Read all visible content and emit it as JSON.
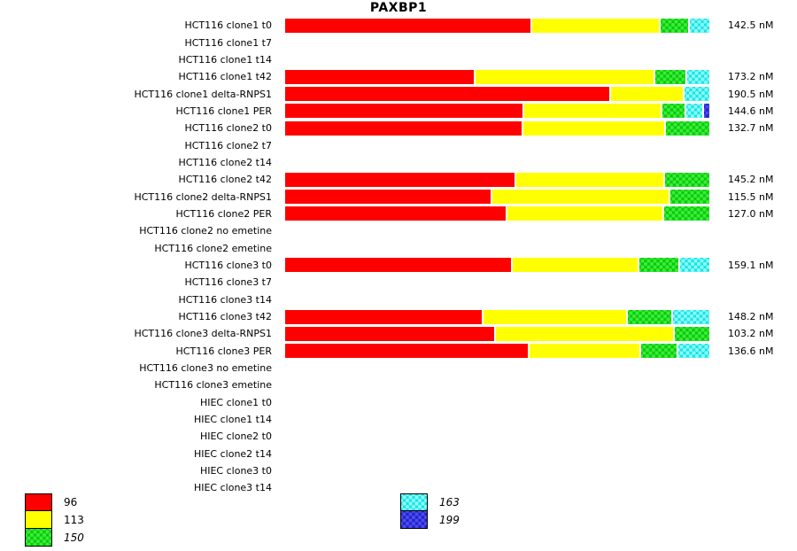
{
  "title": "PAXBP1",
  "chart_data": {
    "type": "bar",
    "orientation": "horizontal-stacked",
    "title": "PAXBP1",
    "xlabel": "",
    "ylabel": "",
    "grid": false,
    "legend_position": "bottom-left",
    "x_range_percent": [
      0,
      100
    ],
    "series_names": [
      "96",
      "113",
      "150",
      "163",
      "199"
    ],
    "series_colors": {
      "96": "#ff0000",
      "113": "#ffff00",
      "150": "#00cc00",
      "163": "#20dede",
      "199": "#2020d0"
    },
    "patterned_series": [
      "150",
      "163",
      "199"
    ],
    "categories": [
      "HCT116 clone1 t0",
      "HCT116 clone1 t7",
      "HCT116 clone1 t14",
      "HCT116 clone1 t42",
      "HCT116 clone1 delta-RNPS1",
      "HCT116 clone1 PER",
      "HCT116 clone2 t0",
      "HCT116 clone2 t7",
      "HCT116 clone2 t14",
      "HCT116 clone2 t42",
      "HCT116 clone2 delta-RNPS1",
      "HCT116 clone2 PER",
      "HCT116 clone2 no emetine",
      "HCT116 clone2 emetine",
      "HCT116 clone3 t0",
      "HCT116 clone3 t7",
      "HCT116 clone3 t14",
      "HCT116 clone3 t42",
      "HCT116 clone3 delta-RNPS1",
      "HCT116 clone3 PER",
      "HCT116 clone3 no emetine",
      "HCT116 clone3 emetine",
      "HIEC clone1 t0",
      "HIEC clone1 t14",
      "HIEC clone2 t0",
      "HIEC clone2 t14",
      "HIEC clone3 t0",
      "HIEC clone3 t14"
    ],
    "stacked_percent": [
      [
        58.6,
        30.3,
        6.5,
        4.6,
        0
      ],
      [
        0,
        0,
        0,
        0,
        0
      ],
      [
        0,
        0,
        0,
        0,
        0
      ],
      [
        45.1,
        42.4,
        7.3,
        5.2,
        0
      ],
      [
        77.1,
        17.1,
        0,
        5.8,
        0
      ],
      [
        57.0,
        32.5,
        5.5,
        3.7,
        1.3
      ],
      [
        56.3,
        33.4,
        10.3,
        0,
        0
      ],
      [
        0,
        0,
        0,
        0,
        0
      ],
      [
        0,
        0,
        0,
        0,
        0
      ],
      [
        54.6,
        34.9,
        10.5,
        0,
        0
      ],
      [
        48.8,
        41.9,
        9.3,
        0,
        0
      ],
      [
        52.5,
        36.7,
        10.8,
        0,
        0
      ],
      [
        0,
        0,
        0,
        0,
        0
      ],
      [
        0,
        0,
        0,
        0,
        0
      ],
      [
        54.0,
        29.8,
        9.2,
        7.0,
        0
      ],
      [
        0,
        0,
        0,
        0,
        0
      ],
      [
        0,
        0,
        0,
        0,
        0
      ],
      [
        47.0,
        34.0,
        10.4,
        8.6,
        0
      ],
      [
        49.7,
        42.1,
        8.2,
        0,
        0
      ],
      [
        57.9,
        26.2,
        8.6,
        7.3,
        0
      ],
      [
        0,
        0,
        0,
        0,
        0
      ],
      [
        0,
        0,
        0,
        0,
        0
      ],
      [
        0,
        0,
        0,
        0,
        0
      ],
      [
        0,
        0,
        0,
        0,
        0
      ],
      [
        0,
        0,
        0,
        0,
        0
      ],
      [
        0,
        0,
        0,
        0,
        0
      ],
      [
        0,
        0,
        0,
        0,
        0
      ],
      [
        0,
        0,
        0,
        0,
        0
      ]
    ],
    "totals_nM": [
      142.5,
      null,
      null,
      173.2,
      190.5,
      144.6,
      132.7,
      null,
      null,
      145.2,
      115.5,
      127.0,
      null,
      null,
      159.1,
      null,
      null,
      148.2,
      103.2,
      136.6,
      null,
      null,
      null,
      null,
      null,
      null,
      null,
      null
    ],
    "bar_value_labels": [
      "142.5 nM",
      "",
      "",
      "173.2 nM",
      "190.5 nM",
      "144.6 nM",
      "132.7 nM",
      "",
      "",
      "145.2 nM",
      "115.5 nM",
      "127.0 nM",
      "",
      "",
      "159.1 nM",
      "",
      "",
      "148.2 nM",
      "103.2 nM",
      "136.6 nM",
      "",
      "",
      "",
      "",
      "",
      "",
      "",
      ""
    ]
  },
  "legend": {
    "columns": [
      {
        "items": [
          {
            "label": "96",
            "key": "96",
            "italic": false
          },
          {
            "label": "113",
            "key": "113",
            "italic": false
          },
          {
            "label": "150",
            "key": "150",
            "italic": true
          }
        ]
      },
      {
        "items": [
          {
            "label": "163",
            "key": "163",
            "italic": true
          },
          {
            "label": "199",
            "key": "199",
            "italic": true
          }
        ]
      }
    ]
  }
}
